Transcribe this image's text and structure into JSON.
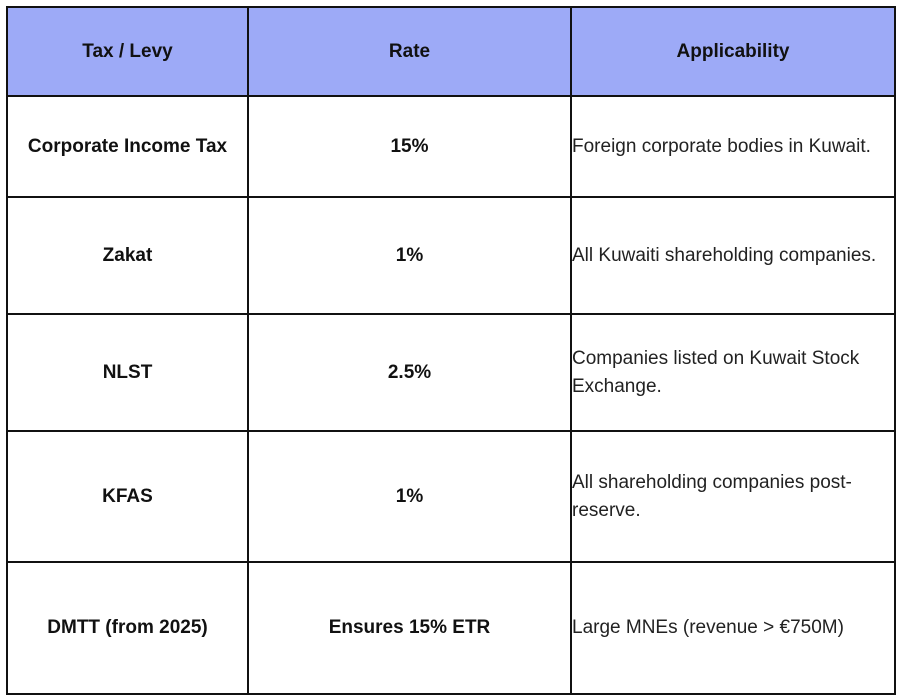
{
  "table": {
    "header_color": "#9DAAF7",
    "border_color": "#111111",
    "columns": [
      "Tax / Levy",
      "Rate",
      "Applicability"
    ],
    "rows": [
      {
        "tax": "Corporate Income Tax",
        "rate": "15%",
        "applicability": "Foreign corporate bodies in Kuwait."
      },
      {
        "tax": "Zakat",
        "rate": "1%",
        "applicability": "All Kuwaiti shareholding companies."
      },
      {
        "tax": "NLST",
        "rate": "2.5%",
        "applicability": "Companies listed on Kuwait Stock Exchange."
      },
      {
        "tax": "KFAS",
        "rate": "1%",
        "applicability": "All shareholding companies post-reserve."
      },
      {
        "tax": "DMTT (from 2025)",
        "rate": "Ensures 15% ETR",
        "applicability": "Large MNEs (revenue > €750M)"
      }
    ]
  }
}
